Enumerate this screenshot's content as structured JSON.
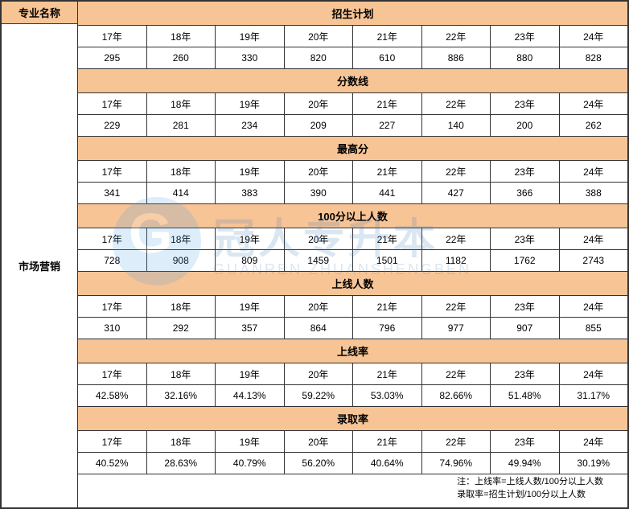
{
  "header": {
    "major_label": "专业名称",
    "major_name": "市场营销"
  },
  "years": [
    "17年",
    "18年",
    "19年",
    "20年",
    "21年",
    "22年",
    "23年",
    "24年"
  ],
  "sections": [
    {
      "title": "招生计划",
      "values": [
        "295",
        "260",
        "330",
        "820",
        "610",
        "886",
        "880",
        "828"
      ]
    },
    {
      "title": "分数线",
      "values": [
        "229",
        "281",
        "234",
        "209",
        "227",
        "140",
        "200",
        "262"
      ]
    },
    {
      "title": "最高分",
      "values": [
        "341",
        "414",
        "383",
        "390",
        "441",
        "427",
        "366",
        "388"
      ]
    },
    {
      "title": "100分以上人数",
      "values": [
        "728",
        "908",
        "809",
        "1459",
        "1501",
        "1182",
        "1762",
        "2743"
      ]
    },
    {
      "title": "上线人数",
      "values": [
        "310",
        "292",
        "357",
        "864",
        "796",
        "977",
        "907",
        "855"
      ]
    },
    {
      "title": "上线率",
      "values": [
        "42.58%",
        "32.16%",
        "44.13%",
        "59.22%",
        "53.03%",
        "82.66%",
        "51.48%",
        "31.17%"
      ]
    },
    {
      "title": "录取率",
      "values": [
        "40.52%",
        "28.63%",
        "40.79%",
        "56.20%",
        "40.64%",
        "74.96%",
        "49.94%",
        "30.19%"
      ]
    }
  ],
  "note": "注：上线率=上线人数/100分以上人数\n录取率=招生计划/100分以上人数",
  "watermark": {
    "cn": "冠人专升本",
    "en": "GUANREN ZHUANSHENGBEN"
  },
  "colors": {
    "header_bg": "#f7c496",
    "border": "#333333",
    "text": "#333333",
    "watermark_color": "#3a7cb8"
  }
}
